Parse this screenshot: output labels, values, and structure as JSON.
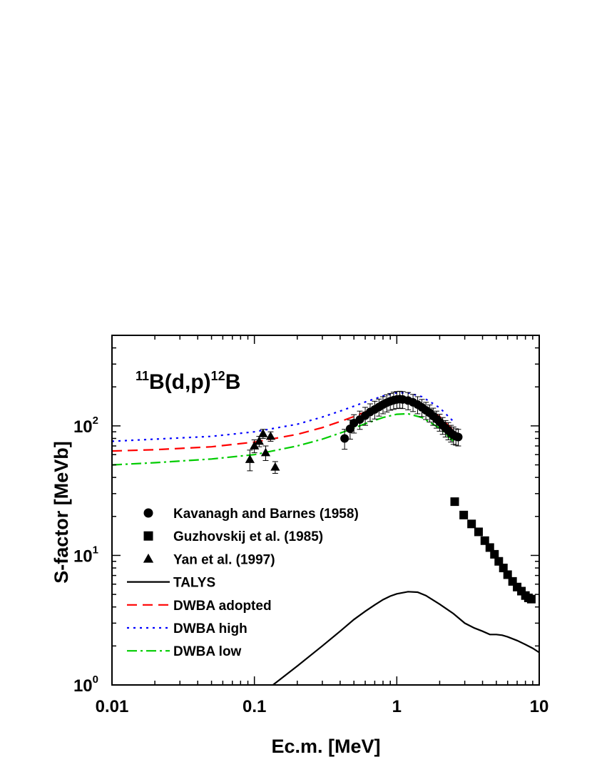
{
  "chart_data": {
    "type": "scatter",
    "annotation": {
      "sup1": "11",
      "base1": "B(d,p)",
      "sup2": "12",
      "base2": "B"
    },
    "xlabel": "Ec.m. [MeV]",
    "ylabel": "S-factor [MeVb]",
    "xscale": "log",
    "yscale": "log",
    "xlim": [
      0.01,
      10
    ],
    "ylim": [
      1,
      500
    ],
    "x_ticks": [
      {
        "value": 0.01,
        "label": "0.01"
      },
      {
        "value": 0.1,
        "label": "0.1"
      },
      {
        "value": 1,
        "label": "1"
      },
      {
        "value": 10,
        "label": "10"
      }
    ],
    "y_ticks": [
      {
        "value": 1,
        "base": "10",
        "exp": "0"
      },
      {
        "value": 10,
        "base": "10",
        "exp": "1"
      },
      {
        "value": 100,
        "base": "10",
        "exp": "2"
      }
    ],
    "legend_position": "lower-left",
    "series": [
      {
        "name": "Kavanagh and Barnes (1958)",
        "kind": "points",
        "marker": "circle",
        "color": "#000000",
        "points": [
          {
            "x": 0.43,
            "y": 80,
            "err": 14
          },
          {
            "x": 0.47,
            "y": 95,
            "err": 16
          },
          {
            "x": 0.5,
            "y": 105,
            "err": 17
          },
          {
            "x": 0.55,
            "y": 112,
            "err": 18
          },
          {
            "x": 0.6,
            "y": 120,
            "err": 19
          },
          {
            "x": 0.65,
            "y": 128,
            "err": 20
          },
          {
            "x": 0.7,
            "y": 134,
            "err": 21
          },
          {
            "x": 0.75,
            "y": 140,
            "err": 21
          },
          {
            "x": 0.8,
            "y": 146,
            "err": 22
          },
          {
            "x": 0.85,
            "y": 151,
            "err": 23
          },
          {
            "x": 0.9,
            "y": 155,
            "err": 23
          },
          {
            "x": 0.95,
            "y": 158,
            "err": 24
          },
          {
            "x": 1.0,
            "y": 160,
            "err": 24
          },
          {
            "x": 1.05,
            "y": 161,
            "err": 24
          },
          {
            "x": 1.1,
            "y": 160,
            "err": 24
          },
          {
            "x": 1.2,
            "y": 157,
            "err": 24
          },
          {
            "x": 1.3,
            "y": 152,
            "err": 23
          },
          {
            "x": 1.4,
            "y": 146,
            "err": 22
          },
          {
            "x": 1.5,
            "y": 139,
            "err": 21
          },
          {
            "x": 1.6,
            "y": 132,
            "err": 20
          },
          {
            "x": 1.7,
            "y": 126,
            "err": 19
          },
          {
            "x": 1.8,
            "y": 119,
            "err": 18
          },
          {
            "x": 1.9,
            "y": 113,
            "err": 17
          },
          {
            "x": 2.0,
            "y": 107,
            "err": 16
          },
          {
            "x": 2.1,
            "y": 101,
            "err": 15
          },
          {
            "x": 2.2,
            "y": 96,
            "err": 14
          },
          {
            "x": 2.3,
            "y": 92,
            "err": 14
          },
          {
            "x": 2.4,
            "y": 88,
            "err": 13
          },
          {
            "x": 2.5,
            "y": 85,
            "err": 13
          },
          {
            "x": 2.6,
            "y": 83,
            "err": 12
          },
          {
            "x": 2.7,
            "y": 82,
            "err": 12
          }
        ]
      },
      {
        "name": "Guzhovskij et al. (1985)",
        "kind": "points",
        "marker": "square",
        "color": "#000000",
        "points": [
          {
            "x": 2.55,
            "y": 26
          },
          {
            "x": 2.95,
            "y": 20.5
          },
          {
            "x": 3.35,
            "y": 17.5
          },
          {
            "x": 3.75,
            "y": 15.2
          },
          {
            "x": 4.15,
            "y": 13
          },
          {
            "x": 4.5,
            "y": 11.5
          },
          {
            "x": 4.85,
            "y": 10.2
          },
          {
            "x": 5.2,
            "y": 9
          },
          {
            "x": 5.6,
            "y": 8
          },
          {
            "x": 6.0,
            "y": 7.1
          },
          {
            "x": 6.5,
            "y": 6.3
          },
          {
            "x": 7.0,
            "y": 5.7
          },
          {
            "x": 7.5,
            "y": 5.3
          },
          {
            "x": 8.0,
            "y": 4.9
          },
          {
            "x": 8.4,
            "y": 4.7
          },
          {
            "x": 8.8,
            "y": 4.6
          }
        ]
      },
      {
        "name": "Yan et al. (1997)",
        "kind": "points",
        "marker": "triangle",
        "color": "#000000",
        "points": [
          {
            "x": 0.093,
            "y": 55,
            "err": 10
          },
          {
            "x": 0.1,
            "y": 70,
            "err": 8
          },
          {
            "x": 0.108,
            "y": 76,
            "err": 7
          },
          {
            "x": 0.115,
            "y": 87,
            "err": 7
          },
          {
            "x": 0.12,
            "y": 62,
            "err": 8
          },
          {
            "x": 0.13,
            "y": 83,
            "err": 7
          },
          {
            "x": 0.14,
            "y": 48,
            "err": 5
          }
        ]
      },
      {
        "name": "TALYS",
        "kind": "line",
        "style": "solid",
        "color": "#000000",
        "points": [
          {
            "x": 0.135,
            "y": 1.0
          },
          {
            "x": 0.2,
            "y": 1.4
          },
          {
            "x": 0.3,
            "y": 2.0
          },
          {
            "x": 0.4,
            "y": 2.6
          },
          {
            "x": 0.5,
            "y": 3.2
          },
          {
            "x": 0.6,
            "y": 3.7
          },
          {
            "x": 0.7,
            "y": 4.15
          },
          {
            "x": 0.8,
            "y": 4.55
          },
          {
            "x": 0.9,
            "y": 4.85
          },
          {
            "x": 1.0,
            "y": 5.05
          },
          {
            "x": 1.2,
            "y": 5.25
          },
          {
            "x": 1.4,
            "y": 5.2
          },
          {
            "x": 1.6,
            "y": 4.9
          },
          {
            "x": 2.0,
            "y": 4.2
          },
          {
            "x": 2.5,
            "y": 3.55
          },
          {
            "x": 3.0,
            "y": 3.0
          },
          {
            "x": 3.5,
            "y": 2.75
          },
          {
            "x": 4.0,
            "y": 2.6
          },
          {
            "x": 4.5,
            "y": 2.45
          },
          {
            "x": 5.0,
            "y": 2.45
          },
          {
            "x": 5.5,
            "y": 2.42
          },
          {
            "x": 6.0,
            "y": 2.35
          },
          {
            "x": 7.0,
            "y": 2.2
          },
          {
            "x": 8.0,
            "y": 2.05
          },
          {
            "x": 9.0,
            "y": 1.92
          },
          {
            "x": 10.0,
            "y": 1.78
          }
        ]
      },
      {
        "name": "DWBA adopted",
        "kind": "line",
        "style": "dashed",
        "color": "#ff0000",
        "points": [
          {
            "x": 0.01,
            "y": 64
          },
          {
            "x": 0.02,
            "y": 65.5
          },
          {
            "x": 0.05,
            "y": 69
          },
          {
            "x": 0.1,
            "y": 75
          },
          {
            "x": 0.2,
            "y": 86
          },
          {
            "x": 0.3,
            "y": 97
          },
          {
            "x": 0.4,
            "y": 108
          },
          {
            "x": 0.5,
            "y": 118
          },
          {
            "x": 0.6,
            "y": 128
          },
          {
            "x": 0.8,
            "y": 143
          },
          {
            "x": 1.0,
            "y": 152
          },
          {
            "x": 1.2,
            "y": 153
          },
          {
            "x": 1.5,
            "y": 143
          },
          {
            "x": 2.0,
            "y": 118
          },
          {
            "x": 2.5,
            "y": 92
          }
        ]
      },
      {
        "name": "DWBA high",
        "kind": "line",
        "style": "dotted",
        "color": "#0000ff",
        "points": [
          {
            "x": 0.01,
            "y": 76
          },
          {
            "x": 0.02,
            "y": 79
          },
          {
            "x": 0.05,
            "y": 83
          },
          {
            "x": 0.1,
            "y": 90
          },
          {
            "x": 0.2,
            "y": 103
          },
          {
            "x": 0.3,
            "y": 117
          },
          {
            "x": 0.4,
            "y": 130
          },
          {
            "x": 0.5,
            "y": 142
          },
          {
            "x": 0.6,
            "y": 153
          },
          {
            "x": 0.8,
            "y": 170
          },
          {
            "x": 1.0,
            "y": 180
          },
          {
            "x": 1.2,
            "y": 180
          },
          {
            "x": 1.5,
            "y": 168
          },
          {
            "x": 2.0,
            "y": 138
          },
          {
            "x": 2.5,
            "y": 108
          }
        ]
      },
      {
        "name": "DWBA low",
        "kind": "line",
        "style": "dashdot",
        "color": "#00cc00",
        "points": [
          {
            "x": 0.01,
            "y": 50
          },
          {
            "x": 0.02,
            "y": 52
          },
          {
            "x": 0.05,
            "y": 55.5
          },
          {
            "x": 0.1,
            "y": 60
          },
          {
            "x": 0.2,
            "y": 70
          },
          {
            "x": 0.3,
            "y": 79
          },
          {
            "x": 0.4,
            "y": 88
          },
          {
            "x": 0.5,
            "y": 96
          },
          {
            "x": 0.6,
            "y": 104
          },
          {
            "x": 0.8,
            "y": 116
          },
          {
            "x": 1.0,
            "y": 123
          },
          {
            "x": 1.2,
            "y": 124
          },
          {
            "x": 1.5,
            "y": 116
          },
          {
            "x": 2.0,
            "y": 96
          },
          {
            "x": 2.5,
            "y": 76
          }
        ]
      }
    ]
  }
}
